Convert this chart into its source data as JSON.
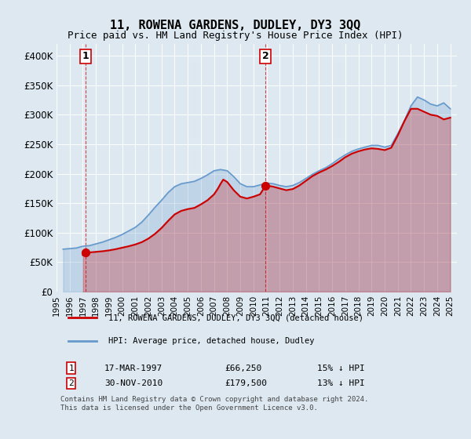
{
  "title": "11, ROWENA GARDENS, DUDLEY, DY3 3QQ",
  "subtitle": "Price paid vs. HM Land Registry's House Price Index (HPI)",
  "background_color": "#dde8f0",
  "plot_bg_color": "#dde8f0",
  "ylabel_ticks": [
    "£0",
    "£50K",
    "£100K",
    "£150K",
    "£200K",
    "£250K",
    "£300K",
    "£350K",
    "£400K"
  ],
  "ytick_values": [
    0,
    50000,
    100000,
    150000,
    200000,
    250000,
    300000,
    350000,
    400000
  ],
  "ylim": [
    0,
    420000
  ],
  "xlim_start": 1995.5,
  "xlim_end": 2025.5,
  "xtick_years": [
    1995,
    1996,
    1997,
    1998,
    1999,
    2000,
    2001,
    2002,
    2003,
    2004,
    2005,
    2006,
    2007,
    2008,
    2009,
    2010,
    2011,
    2012,
    2013,
    2014,
    2015,
    2016,
    2017,
    2018,
    2019,
    2020,
    2021,
    2022,
    2023,
    2024,
    2025
  ],
  "sale1_x": 1997.21,
  "sale1_y": 66250,
  "sale2_x": 2010.92,
  "sale2_y": 179500,
  "sale_color": "#cc0000",
  "hpi_color": "#6699cc",
  "annotation1_label": "1",
  "annotation2_label": "2",
  "legend_sale_label": "11, ROWENA GARDENS, DUDLEY, DY3 3QQ (detached house)",
  "legend_hpi_label": "HPI: Average price, detached house, Dudley",
  "table_row1": [
    "1",
    "17-MAR-1997",
    "£66,250",
    "15% ↓ HPI"
  ],
  "table_row2": [
    "2",
    "30-NOV-2010",
    "£179,500",
    "13% ↓ HPI"
  ],
  "footer": "Contains HM Land Registry data © Crown copyright and database right 2024.\nThis data is licensed under the Open Government Licence v3.0.",
  "hpi_data_x": [
    1995.5,
    1996.0,
    1996.5,
    1997.0,
    1997.5,
    1998.0,
    1998.5,
    1999.0,
    1999.5,
    2000.0,
    2000.5,
    2001.0,
    2001.5,
    2002.0,
    2002.5,
    2003.0,
    2003.5,
    2004.0,
    2004.5,
    2005.0,
    2005.5,
    2006.0,
    2006.5,
    2007.0,
    2007.5,
    2008.0,
    2008.5,
    2009.0,
    2009.5,
    2010.0,
    2010.5,
    2011.0,
    2011.5,
    2012.0,
    2012.5,
    2013.0,
    2013.5,
    2014.0,
    2014.5,
    2015.0,
    2015.5,
    2016.0,
    2016.5,
    2017.0,
    2017.5,
    2018.0,
    2018.5,
    2019.0,
    2019.5,
    2020.0,
    2020.5,
    2021.0,
    2021.5,
    2022.0,
    2022.5,
    2023.0,
    2023.5,
    2024.0,
    2024.5,
    2025.0
  ],
  "hpi_data_y": [
    72000,
    73000,
    74000,
    77000,
    78000,
    81000,
    84000,
    88000,
    92000,
    97000,
    103000,
    109000,
    118000,
    130000,
    143000,
    155000,
    168000,
    178000,
    183000,
    185000,
    187000,
    192000,
    198000,
    205000,
    207000,
    205000,
    195000,
    183000,
    178000,
    178000,
    181000,
    184000,
    183000,
    180000,
    178000,
    180000,
    185000,
    192000,
    199000,
    205000,
    210000,
    217000,
    225000,
    232000,
    238000,
    242000,
    245000,
    248000,
    248000,
    245000,
    248000,
    268000,
    290000,
    315000,
    330000,
    325000,
    318000,
    315000,
    320000,
    310000
  ],
  "sale_line_x": [
    1997.0,
    1997.21,
    1997.5,
    1998.0,
    1998.5,
    1999.0,
    1999.5,
    2000.0,
    2000.5,
    2001.0,
    2001.5,
    2002.0,
    2002.5,
    2003.0,
    2003.5,
    2004.0,
    2004.5,
    2005.0,
    2005.5,
    2006.0,
    2006.5,
    2007.0,
    2007.3,
    2007.5,
    2007.7,
    2008.0,
    2008.5,
    2009.0,
    2009.5,
    2010.0,
    2010.5,
    2010.92,
    2011.0,
    2011.5,
    2012.0,
    2012.5,
    2013.0,
    2013.5,
    2014.0,
    2014.5,
    2015.0,
    2015.5,
    2016.0,
    2016.5,
    2017.0,
    2017.5,
    2018.0,
    2018.5,
    2019.0,
    2019.5,
    2020.0,
    2020.5,
    2021.0,
    2021.5,
    2022.0,
    2022.5,
    2023.0,
    2023.5,
    2024.0,
    2024.5,
    2025.0
  ],
  "sale_line_y": [
    62000,
    66250,
    66500,
    67500,
    68500,
    70000,
    72000,
    74500,
    77000,
    80000,
    84000,
    90000,
    98000,
    108000,
    120000,
    131000,
    137000,
    140000,
    142000,
    148000,
    155000,
    165000,
    175000,
    183000,
    190000,
    186000,
    172000,
    161000,
    158000,
    161000,
    165000,
    179500,
    180000,
    178000,
    175000,
    172000,
    174000,
    180000,
    188000,
    196000,
    202000,
    207000,
    213000,
    220000,
    228000,
    234000,
    238000,
    241000,
    243000,
    242000,
    240000,
    244000,
    265000,
    289000,
    310000,
    310000,
    305000,
    300000,
    298000,
    292000,
    295000
  ]
}
